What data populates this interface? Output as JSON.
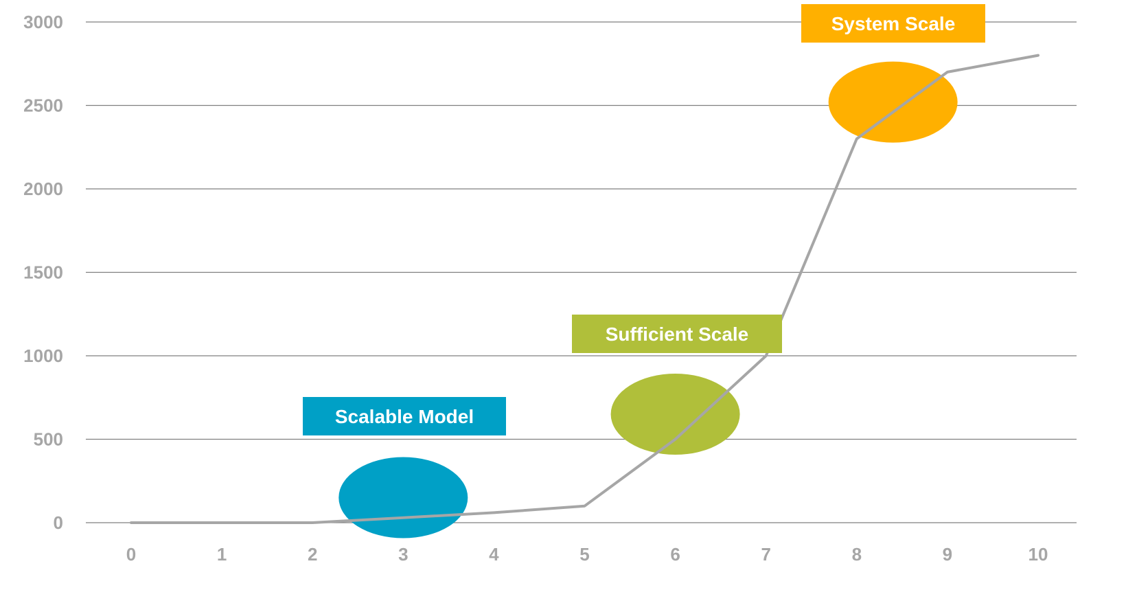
{
  "chart_data": {
    "type": "line",
    "x": [
      0,
      1,
      2,
      3,
      4,
      5,
      6,
      7,
      8,
      9,
      10
    ],
    "series": [
      {
        "values": [
          0,
          0,
          0,
          30,
          60,
          100,
          500,
          1000,
          2300,
          2700,
          2800
        ],
        "color": "#a6a6a6"
      }
    ],
    "xlim": [
      0,
      10
    ],
    "ylim": [
      0,
      3000
    ],
    "x_ticks": [
      0,
      1,
      2,
      3,
      4,
      5,
      6,
      7,
      8,
      9,
      10
    ],
    "y_ticks": [
      0,
      500,
      1000,
      1500,
      2000,
      2500,
      3000
    ],
    "grid": "horizontal",
    "legend": "none",
    "axis_label_color": "#a6a6a6",
    "gridline_color": "#7f7f7f",
    "annotations": [
      {
        "label": "Scalable Model",
        "ellipse_x": 3.0,
        "ellipse_y": 150,
        "color": "#00a0c6"
      },
      {
        "label": "Sufficient Scale",
        "ellipse_x": 6.0,
        "ellipse_y": 650,
        "color": "#b0bf3a"
      },
      {
        "label": "System Scale",
        "ellipse_x": 8.4,
        "ellipse_y": 2520,
        "color": "#ffb000"
      }
    ]
  }
}
